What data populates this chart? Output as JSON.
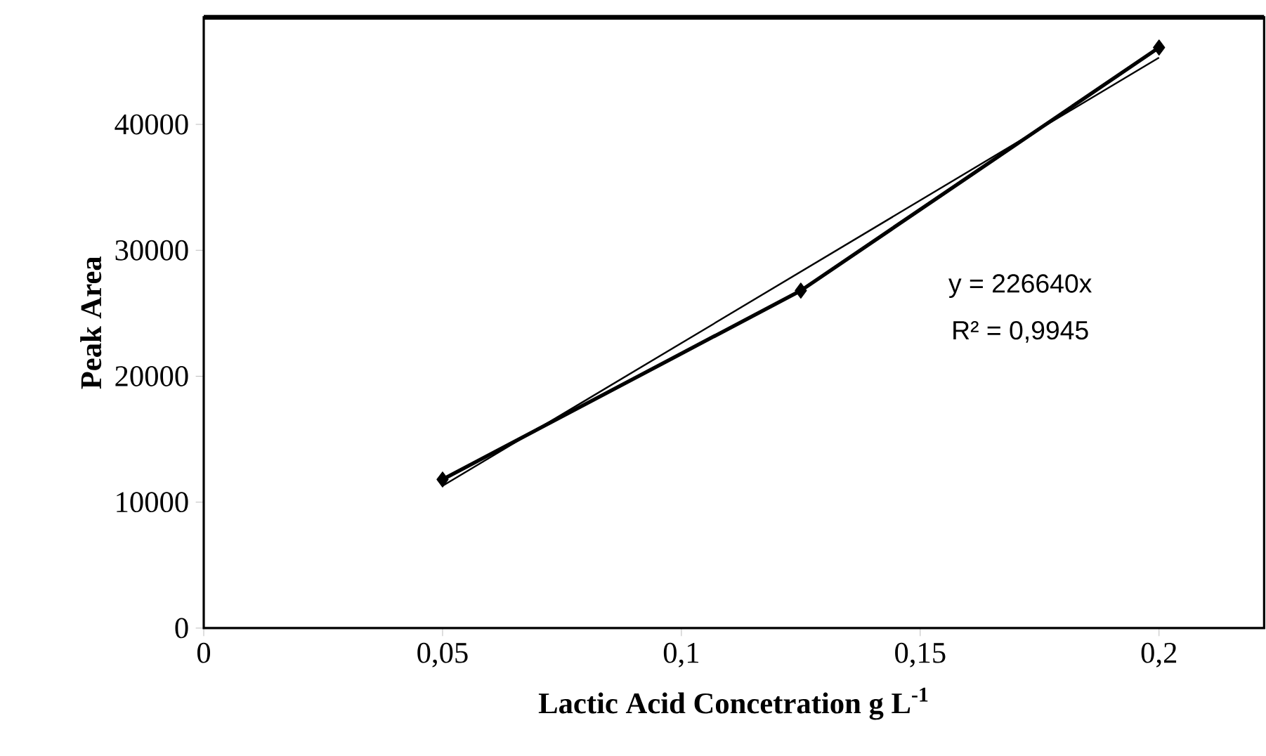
{
  "chart_data": {
    "type": "line",
    "xlabel": "Lactic Acid Concetration g L$^{-1}$",
    "ylabel": "Peak Area",
    "xlim": [
      0,
      0.222
    ],
    "ylim": [
      0,
      48500
    ],
    "xticks": [
      0,
      {
        "value": 0.05,
        "label": "0,05"
      },
      {
        "value": 0.1,
        "label": "0,1"
      },
      {
        "value": 0.15,
        "label": "0,15"
      },
      {
        "value": 0.2,
        "label": "0,2"
      }
    ],
    "yticks": [
      0,
      10000,
      20000,
      30000,
      40000
    ],
    "series": [
      {
        "type": "line",
        "color": "#000000",
        "x": [
          0.05,
          0.125,
          0.2
        ],
        "values": [
          11800,
          26800,
          46100
        ],
        "marker": "diamond",
        "line_style": "solid"
      },
      {
        "type": "line",
        "color": "#000000",
        "x": [
          0.05,
          0.2
        ],
        "values": [
          11300,
          45300
        ],
        "marker": "none",
        "line_style": "solid"
      }
    ],
    "annotations": [
      "y = 226640x",
      "R² = 0,9945"
    ],
    "grid": false
  }
}
